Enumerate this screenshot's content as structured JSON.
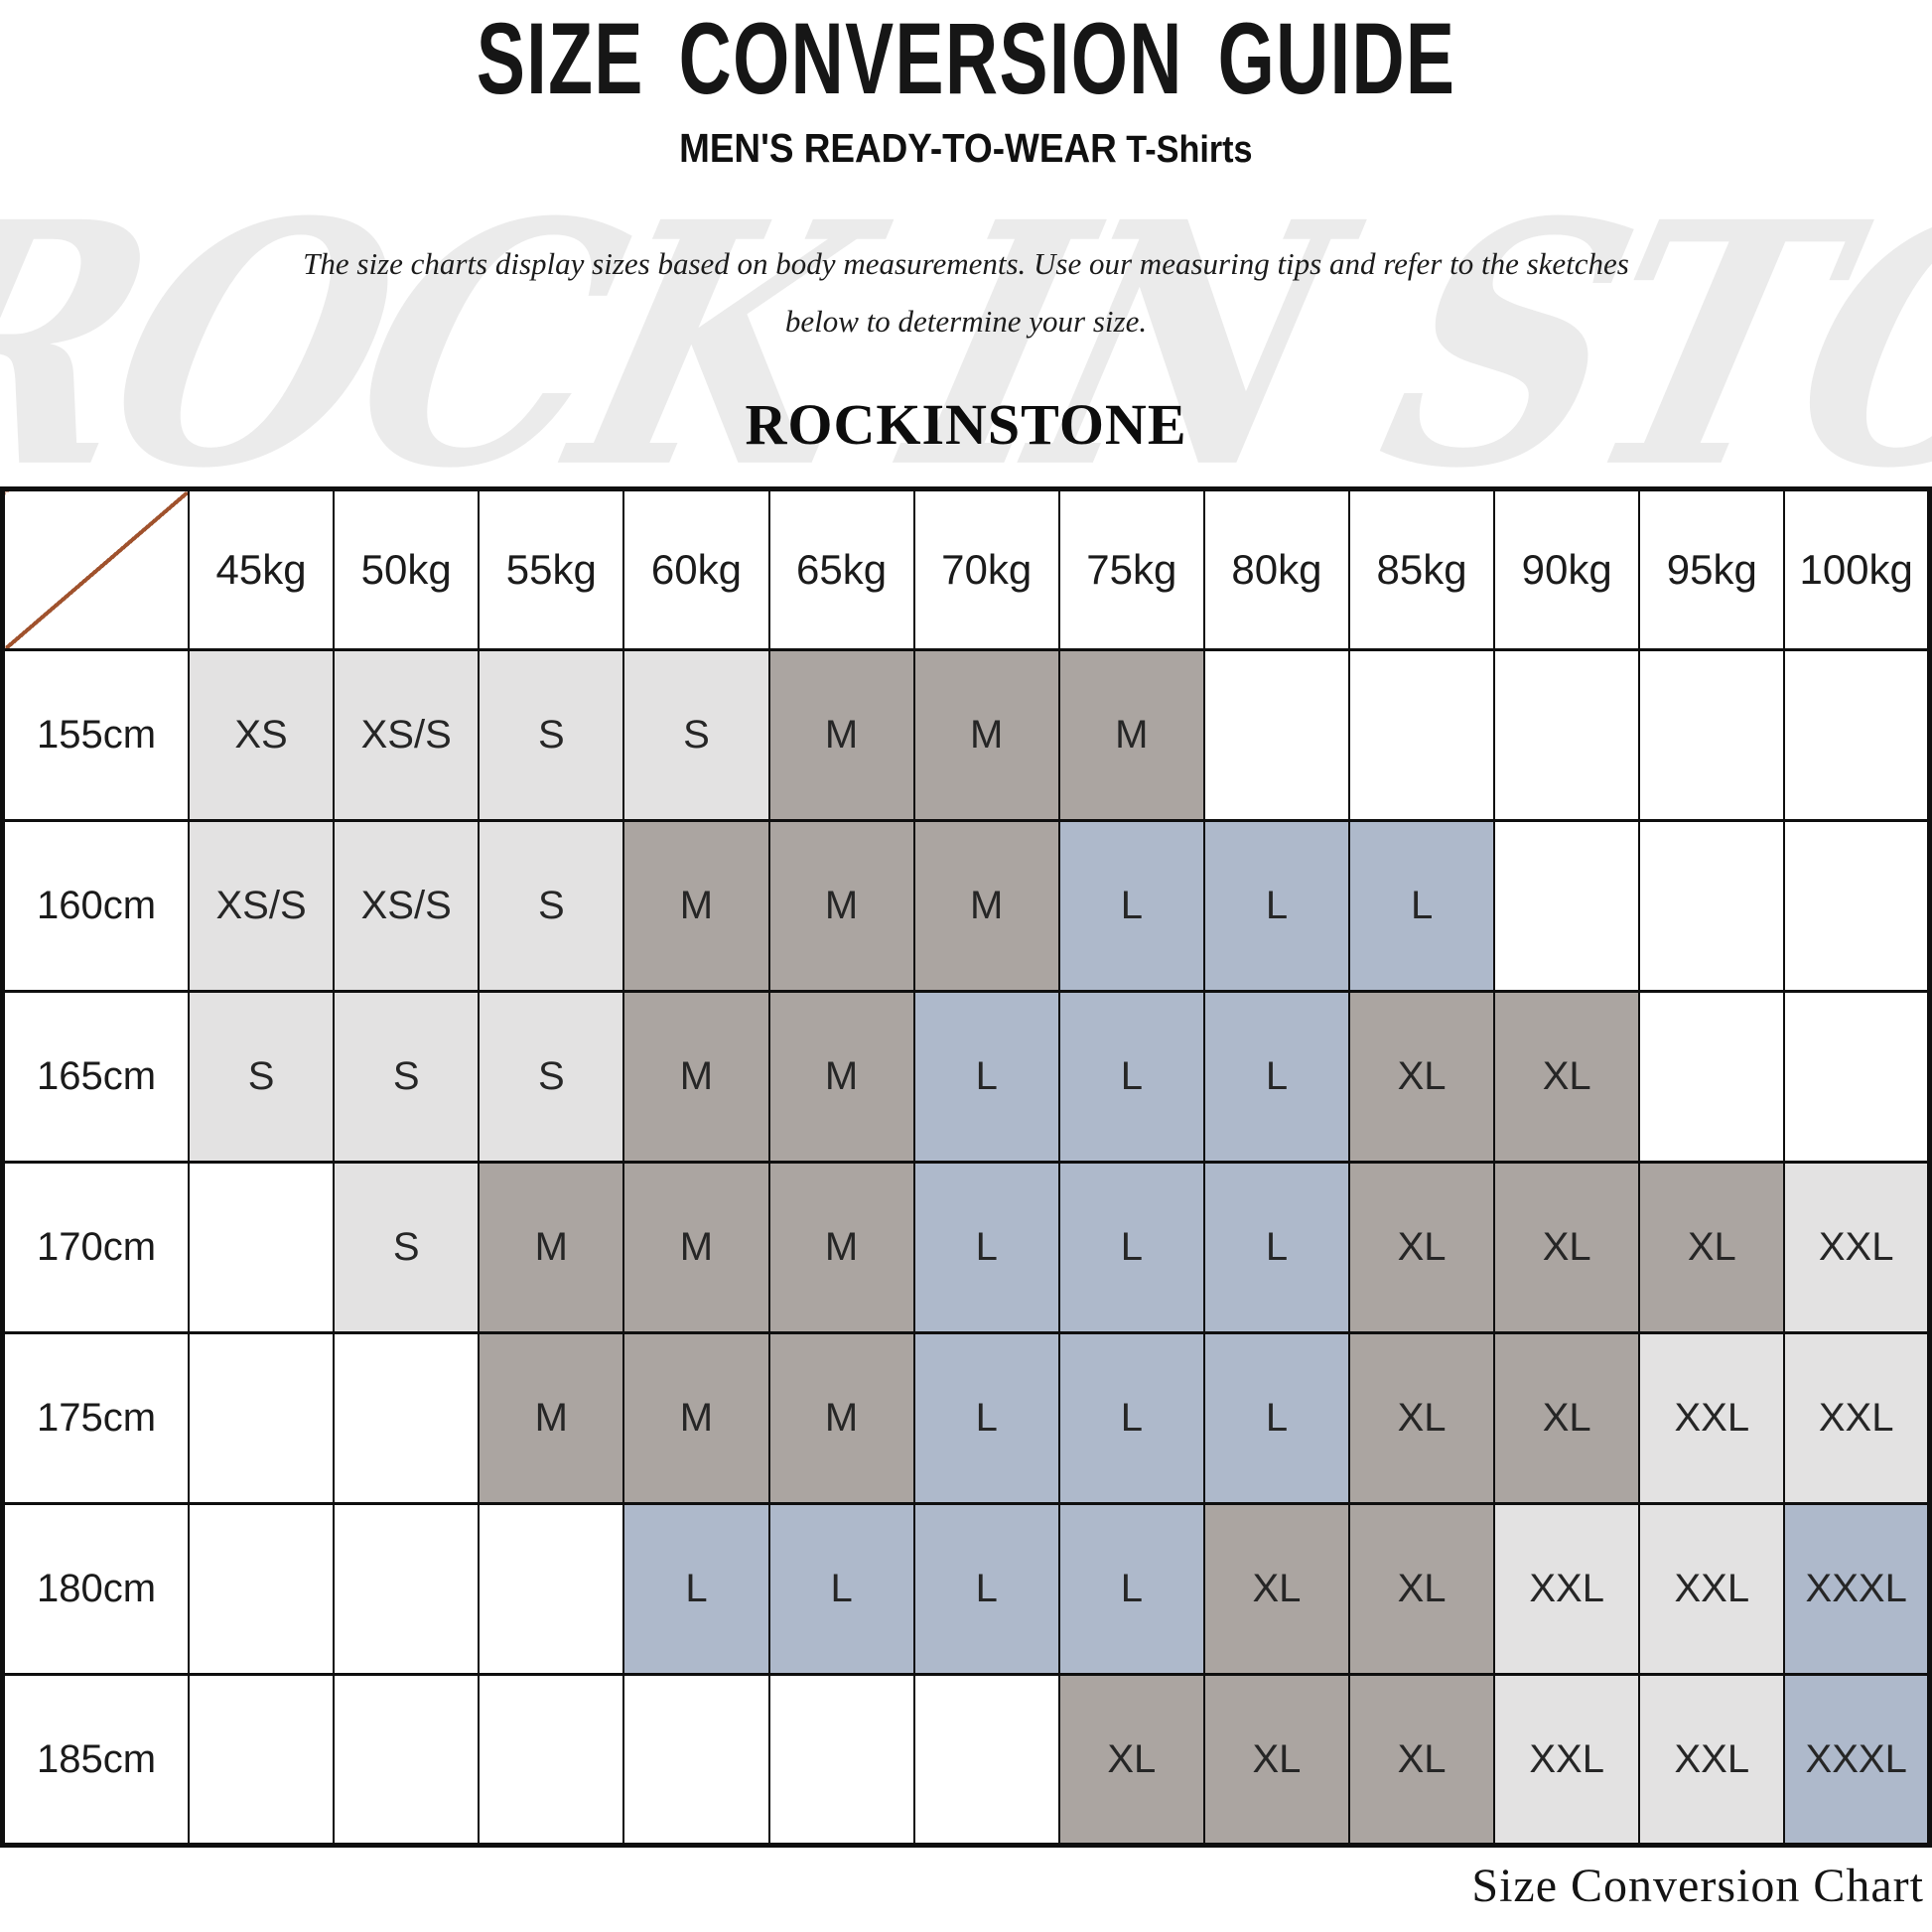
{
  "page": {
    "title": "SIZE CONVERSION GUIDE",
    "subtitle_main": "MEN'S READY-TO-WEAR",
    "subtitle_secondary": " T-Shirts",
    "description_line1": "The size charts display sizes based on body measurements. Use our measuring tips and refer to the sketches",
    "description_line2": "below to determine your size.",
    "brand": "ROCKINSTONE",
    "watermark": "ROCK IN STONE",
    "footer": "Size Conversion Chart"
  },
  "colors": {
    "light": "#e3e2e2",
    "gray": "#aba5a1",
    "blue": "#aeb9cb",
    "diagonal": "#a0522d"
  },
  "chart_data": {
    "type": "table",
    "title": "Size Conversion Guide - Men's T-Shirts (height x weight)",
    "columns": [
      "45kg",
      "50kg",
      "55kg",
      "60kg",
      "65kg",
      "70kg",
      "75kg",
      "80kg",
      "85kg",
      "90kg",
      "95kg",
      "100kg"
    ],
    "rows": [
      {
        "label": "155cm",
        "cells": [
          {
            "v": "XS",
            "c": "light"
          },
          {
            "v": "XS/S",
            "c": "light"
          },
          {
            "v": "S",
            "c": "light"
          },
          {
            "v": "S",
            "c": "light"
          },
          {
            "v": "M",
            "c": "gray"
          },
          {
            "v": "M",
            "c": "gray"
          },
          {
            "v": "M",
            "c": "gray"
          },
          {
            "v": "",
            "c": ""
          },
          {
            "v": "",
            "c": ""
          },
          {
            "v": "",
            "c": ""
          },
          {
            "v": "",
            "c": ""
          },
          {
            "v": "",
            "c": ""
          }
        ]
      },
      {
        "label": "160cm",
        "cells": [
          {
            "v": "XS/S",
            "c": "light"
          },
          {
            "v": "XS/S",
            "c": "light"
          },
          {
            "v": "S",
            "c": "light"
          },
          {
            "v": "M",
            "c": "gray"
          },
          {
            "v": "M",
            "c": "gray"
          },
          {
            "v": "M",
            "c": "gray"
          },
          {
            "v": "L",
            "c": "blue"
          },
          {
            "v": "L",
            "c": "blue"
          },
          {
            "v": "L",
            "c": "blue"
          },
          {
            "v": "",
            "c": ""
          },
          {
            "v": "",
            "c": ""
          },
          {
            "v": "",
            "c": ""
          }
        ]
      },
      {
        "label": "165cm",
        "cells": [
          {
            "v": "S",
            "c": "light"
          },
          {
            "v": "S",
            "c": "light"
          },
          {
            "v": "S",
            "c": "light"
          },
          {
            "v": "M",
            "c": "gray"
          },
          {
            "v": "M",
            "c": "gray"
          },
          {
            "v": "L",
            "c": "blue"
          },
          {
            "v": "L",
            "c": "blue"
          },
          {
            "v": "L",
            "c": "blue"
          },
          {
            "v": "XL",
            "c": "gray"
          },
          {
            "v": "XL",
            "c": "gray"
          },
          {
            "v": "",
            "c": ""
          },
          {
            "v": "",
            "c": ""
          }
        ]
      },
      {
        "label": "170cm",
        "cells": [
          {
            "v": "",
            "c": ""
          },
          {
            "v": "S",
            "c": "light"
          },
          {
            "v": "M",
            "c": "gray"
          },
          {
            "v": "M",
            "c": "gray"
          },
          {
            "v": "M",
            "c": "gray"
          },
          {
            "v": "L",
            "c": "blue"
          },
          {
            "v": "L",
            "c": "blue"
          },
          {
            "v": "L",
            "c": "blue"
          },
          {
            "v": "XL",
            "c": "gray"
          },
          {
            "v": "XL",
            "c": "gray"
          },
          {
            "v": "XL",
            "c": "gray"
          },
          {
            "v": "XXL",
            "c": "light"
          }
        ]
      },
      {
        "label": "175cm",
        "cells": [
          {
            "v": "",
            "c": ""
          },
          {
            "v": "",
            "c": ""
          },
          {
            "v": "M",
            "c": "gray"
          },
          {
            "v": "M",
            "c": "gray"
          },
          {
            "v": "M",
            "c": "gray"
          },
          {
            "v": "L",
            "c": "blue"
          },
          {
            "v": "L",
            "c": "blue"
          },
          {
            "v": "L",
            "c": "blue"
          },
          {
            "v": "XL",
            "c": "gray"
          },
          {
            "v": "XL",
            "c": "gray"
          },
          {
            "v": "XXL",
            "c": "light"
          },
          {
            "v": "XXL",
            "c": "light"
          }
        ]
      },
      {
        "label": "180cm",
        "cells": [
          {
            "v": "",
            "c": ""
          },
          {
            "v": "",
            "c": ""
          },
          {
            "v": "",
            "c": ""
          },
          {
            "v": "L",
            "c": "blue"
          },
          {
            "v": "L",
            "c": "blue"
          },
          {
            "v": "L",
            "c": "blue"
          },
          {
            "v": "L",
            "c": "blue"
          },
          {
            "v": "XL",
            "c": "gray"
          },
          {
            "v": "XL",
            "c": "gray"
          },
          {
            "v": "XXL",
            "c": "light"
          },
          {
            "v": "XXL",
            "c": "light"
          },
          {
            "v": "XXXL",
            "c": "blue"
          }
        ]
      },
      {
        "label": "185cm",
        "cells": [
          {
            "v": "",
            "c": ""
          },
          {
            "v": "",
            "c": ""
          },
          {
            "v": "",
            "c": ""
          },
          {
            "v": "",
            "c": ""
          },
          {
            "v": "",
            "c": ""
          },
          {
            "v": "",
            "c": ""
          },
          {
            "v": "XL",
            "c": "gray"
          },
          {
            "v": "XL",
            "c": "gray"
          },
          {
            "v": "XL",
            "c": "gray"
          },
          {
            "v": "XXL",
            "c": "light"
          },
          {
            "v": "XXL",
            "c": "light"
          },
          {
            "v": "XXXL",
            "c": "blue"
          }
        ]
      }
    ]
  }
}
